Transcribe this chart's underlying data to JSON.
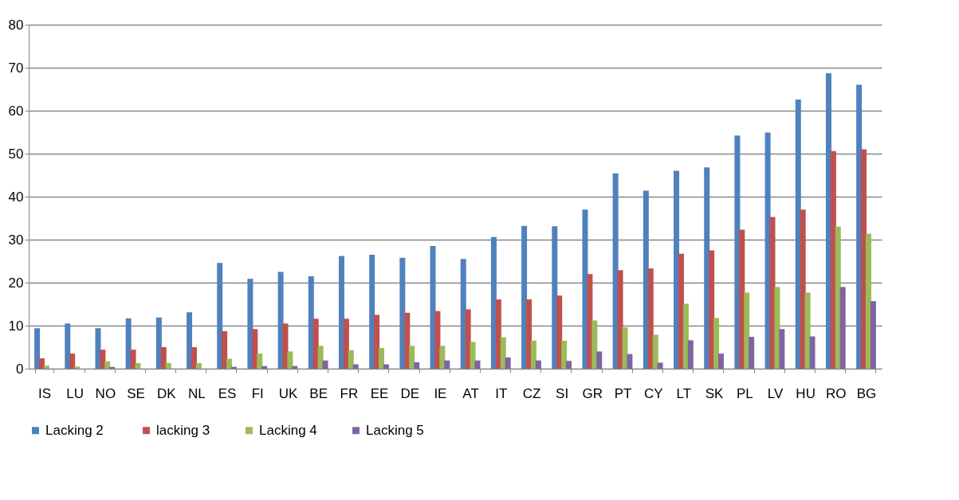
{
  "chart_data": {
    "type": "bar",
    "categories": [
      "IS",
      "LU",
      "NO",
      "SE",
      "DK",
      "NL",
      "ES",
      "FI",
      "UK",
      "BE",
      "FR",
      "EE",
      "DE",
      "IE",
      "AT",
      "IT",
      "CZ",
      "SI",
      "GR",
      "PT",
      "CY",
      "LT",
      "SK",
      "PL",
      "LV",
      "HU",
      "RO",
      "BG"
    ],
    "series": [
      {
        "name": "Lacking  2",
        "color": "#4f81bd",
        "values": [
          9.4,
          10.5,
          9.4,
          11.7,
          11.9,
          13.1,
          24.6,
          20.9,
          22.5,
          21.5,
          26.2,
          26.5,
          25.8,
          28.5,
          25.5,
          30.6,
          33.2,
          33.1,
          37,
          45.4,
          41.4,
          46,
          46.8,
          54.2,
          54.9,
          62.6,
          68.7,
          66
        ]
      },
      {
        "name": "lacking 3",
        "color": "#c0504d",
        "values": [
          2.4,
          3.5,
          4.4,
          4.4,
          5.0,
          5.0,
          8.7,
          9.2,
          10.5,
          11.6,
          11.6,
          12.5,
          13,
          13.4,
          13.8,
          16.1,
          16.1,
          17,
          22,
          22.9,
          23.3,
          26.7,
          27.5,
          32.3,
          35.3,
          37,
          50.6,
          51
        ]
      },
      {
        "name": "Lacking 4",
        "color": "#9bbb59",
        "values": [
          0.7,
          0.5,
          1.7,
          1.3,
          1.3,
          1.3,
          2.3,
          3.5,
          4.0,
          5.3,
          4.3,
          4.8,
          5.3,
          5.3,
          6.2,
          7.3,
          6.5,
          6.5,
          11.2,
          9.6,
          7.9,
          15.1,
          11.8,
          17.7,
          19,
          17.7,
          33,
          31.4
        ]
      },
      {
        "name": "Lacking 5",
        "color": "#8064a2",
        "values": [
          null,
          null,
          0.4,
          null,
          null,
          null,
          0.4,
          0.6,
          0.6,
          1.9,
          1.0,
          1.0,
          1.5,
          1.9,
          1.9,
          2.6,
          1.9,
          1.8,
          4.0,
          3.4,
          1.4,
          6.6,
          3.5,
          7.4,
          9.2,
          7.5,
          19,
          15.7
        ]
      }
    ],
    "ylim": [
      0,
      80
    ],
    "yticks": [
      0,
      10,
      20,
      30,
      40,
      50,
      60,
      70,
      80
    ],
    "grid": "y",
    "legend": "bottom"
  }
}
